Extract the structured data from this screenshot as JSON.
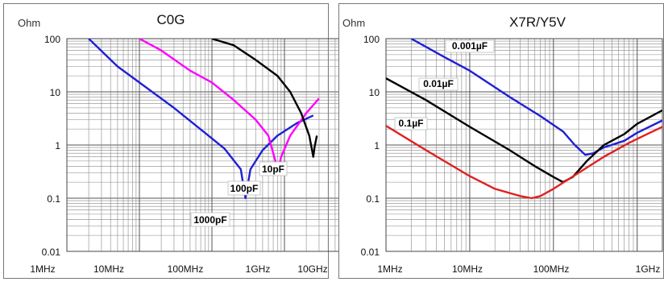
{
  "chart_data": [
    {
      "type": "line",
      "title": "C0G",
      "ylabel": "Ohm",
      "xlabel": "",
      "x_scale": "log",
      "y_scale": "log",
      "xlim": [
        "1MHz",
        "10GHz"
      ],
      "ylim": [
        0.01,
        100
      ],
      "x_tick_labels": [
        "1MHz",
        "10MHz",
        "100MHz",
        "1GHz",
        "10GHz"
      ],
      "y_tick_labels": [
        "100",
        "10",
        "1",
        "0.1",
        "0.01"
      ],
      "grid": true,
      "series": [
        {
          "name": "1000pF",
          "color": "#1f1fd6",
          "x_mhz": [
            2,
            5,
            10,
            30,
            80,
            150,
            250,
            290,
            340,
            500,
            800,
            1500,
            2500
          ],
          "ohm": [
            100,
            30,
            15,
            5,
            1.7,
            0.85,
            0.35,
            0.1,
            0.35,
            0.8,
            1.5,
            2.6,
            3.6
          ]
        },
        {
          "name": "100pF",
          "color": "#ff00ff",
          "x_mhz": [
            10,
            20,
            50,
            100,
            200,
            400,
            600,
            750,
            800,
            900,
            1200,
            2000,
            3000
          ],
          "ohm": [
            100,
            60,
            25,
            15,
            7,
            3,
            1.5,
            0.5,
            0.3,
            0.6,
            1.5,
            4,
            7.5
          ]
        },
        {
          "name": "10pF",
          "color": "#000000",
          "x_mhz": [
            100,
            200,
            400,
            800,
            1200,
            1700,
            2200,
            2500,
            2600,
            2800
          ],
          "ohm": [
            100,
            75,
            40,
            20,
            10,
            4,
            1.5,
            0.6,
            0.9,
            1.5
          ]
        }
      ]
    },
    {
      "type": "line",
      "title": "X7R/Y5V",
      "ylabel": "Ohm",
      "xlabel": "",
      "x_scale": "log",
      "y_scale": "log",
      "xlim": [
        "1MHz",
        "2GHz"
      ],
      "ylim": [
        0.01,
        100
      ],
      "x_tick_labels": [
        "1MHz",
        "10MHz",
        "100MHz",
        "1GHz"
      ],
      "y_tick_labels": [
        "100",
        "10",
        "1",
        "0.1",
        "0.01"
      ],
      "grid": true,
      "series": [
        {
          "name": "0.001µF",
          "color": "#1f1fd6",
          "x_mhz": [
            2,
            5,
            10,
            30,
            70,
            130,
            180,
            240,
            300,
            400,
            700,
            1000,
            2000
          ],
          "ohm": [
            100,
            45,
            25,
            8,
            3.5,
            1.8,
            1.0,
            0.65,
            0.7,
            0.9,
            1.2,
            1.7,
            2.9
          ]
        },
        {
          "name": "0.01µF",
          "color": "#000000",
          "x_mhz": [
            1,
            3,
            10,
            30,
            60,
            100,
            130,
            170,
            250,
            400,
            700,
            1000,
            2000
          ],
          "ohm": [
            18,
            7,
            2.2,
            0.8,
            0.4,
            0.25,
            0.2,
            0.25,
            0.5,
            1.0,
            1.6,
            2.5,
            4.5
          ]
        },
        {
          "name": "0.1µF",
          "color": "#e02020",
          "x_mhz": [
            1,
            3,
            10,
            20,
            40,
            55,
            70,
            100,
            200,
            400,
            800,
            1200,
            2000
          ],
          "ohm": [
            2.3,
            0.8,
            0.26,
            0.15,
            0.11,
            0.1,
            0.11,
            0.15,
            0.3,
            0.6,
            1.1,
            1.5,
            2.2
          ]
        }
      ]
    }
  ]
}
